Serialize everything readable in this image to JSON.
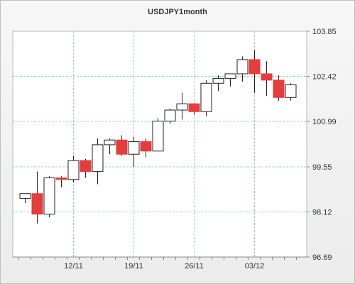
{
  "chart_data": {
    "type": "candlestick",
    "title": "USDJPY1month",
    "xlabel": "",
    "ylabel": "",
    "ylim": [
      96.69,
      103.85
    ],
    "y_ticks": [
      "103.85",
      "102.42",
      "100.99",
      "99.55",
      "98.12",
      "96.69"
    ],
    "x_ticks": [
      {
        "label": "12/11",
        "index": 4
      },
      {
        "label": "19/11",
        "index": 9
      },
      {
        "label": "26/11",
        "index": 14
      },
      {
        "label": "03/12",
        "index": 19
      }
    ],
    "grid": true,
    "colors": {
      "up": "#ffffff",
      "down": "#e53c3c",
      "outline": "#222222",
      "grid": "#9fcfd4",
      "plot_bg": "#ffffff"
    },
    "candles": [
      {
        "open": 98.55,
        "high": 98.7,
        "low": 98.4,
        "close": 98.7
      },
      {
        "open": 98.7,
        "high": 99.4,
        "low": 97.75,
        "close": 98.05
      },
      {
        "open": 98.05,
        "high": 99.25,
        "low": 97.95,
        "close": 99.2
      },
      {
        "open": 99.2,
        "high": 99.25,
        "low": 98.9,
        "close": 99.15
      },
      {
        "open": 99.15,
        "high": 99.9,
        "low": 99.05,
        "close": 99.75
      },
      {
        "open": 99.75,
        "high": 99.8,
        "low": 99.2,
        "close": 99.4
      },
      {
        "open": 99.4,
        "high": 100.45,
        "low": 99.0,
        "close": 100.25
      },
      {
        "open": 100.25,
        "high": 100.45,
        "low": 99.95,
        "close": 100.4
      },
      {
        "open": 100.4,
        "high": 100.55,
        "low": 99.9,
        "close": 99.95
      },
      {
        "open": 99.95,
        "high": 100.5,
        "low": 99.55,
        "close": 100.35
      },
      {
        "open": 100.35,
        "high": 100.45,
        "low": 99.85,
        "close": 100.05
      },
      {
        "open": 100.05,
        "high": 101.1,
        "low": 100.05,
        "close": 101.0
      },
      {
        "open": 101.0,
        "high": 101.4,
        "low": 100.9,
        "close": 101.35
      },
      {
        "open": 101.35,
        "high": 101.9,
        "low": 101.05,
        "close": 101.55
      },
      {
        "open": 101.55,
        "high": 101.55,
        "low": 101.2,
        "close": 101.3
      },
      {
        "open": 101.3,
        "high": 102.3,
        "low": 101.15,
        "close": 102.2
      },
      {
        "open": 102.2,
        "high": 102.45,
        "low": 101.95,
        "close": 102.35
      },
      {
        "open": 102.35,
        "high": 102.5,
        "low": 102.1,
        "close": 102.5
      },
      {
        "open": 102.5,
        "high": 103.05,
        "low": 102.25,
        "close": 102.95
      },
      {
        "open": 102.95,
        "high": 103.25,
        "low": 101.9,
        "close": 102.5
      },
      {
        "open": 102.5,
        "high": 102.9,
        "low": 101.8,
        "close": 102.3
      },
      {
        "open": 102.3,
        "high": 102.45,
        "low": 101.65,
        "close": 101.75
      },
      {
        "open": 101.75,
        "high": 102.2,
        "low": 101.65,
        "close": 102.15
      }
    ]
  }
}
